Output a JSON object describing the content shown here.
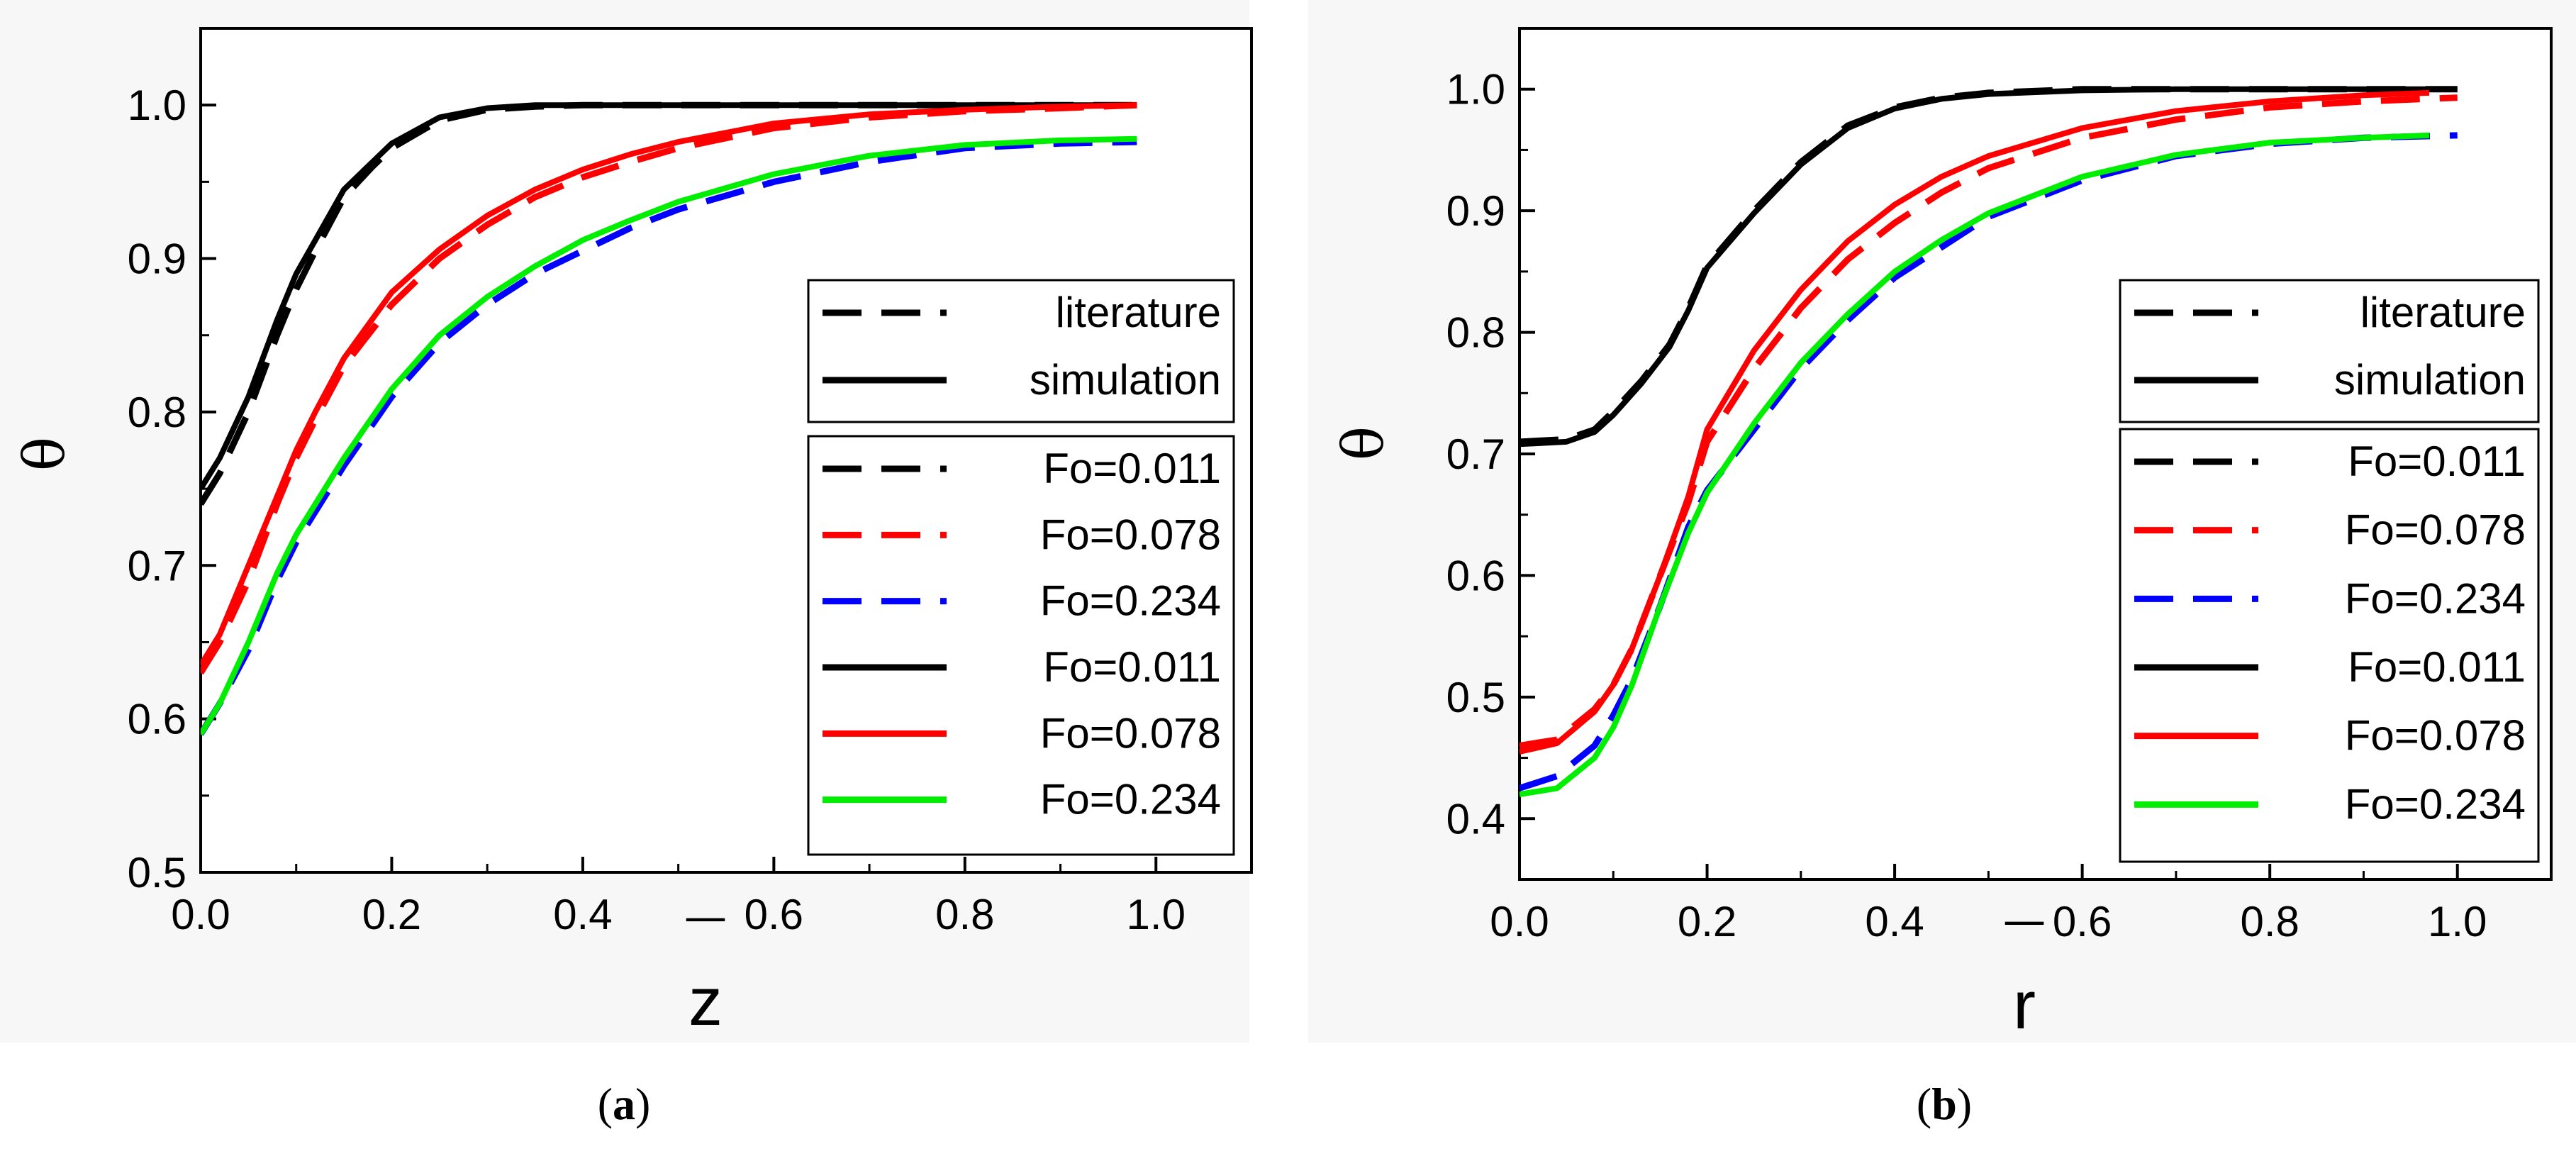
{
  "colors": {
    "black": "#000000",
    "red": "#ff0000",
    "blue": "#0000ff",
    "green": "#00ee00"
  },
  "captions": {
    "a_open": "(",
    "a_letter": "a",
    "a_close": ")",
    "b_open": "(",
    "b_letter": "b",
    "b_close": ")"
  },
  "chart_data": [
    {
      "id": "a",
      "type": "line",
      "title": "",
      "xlabel": "z",
      "xlabel_bar": "¯",
      "ylabel": "θ",
      "xlim": [
        0.0,
        1.1
      ],
      "ylim": [
        0.5,
        1.05
      ],
      "xticks": [
        "0.0",
        "0.2",
        "0.4",
        "0.6",
        "0.8",
        "1.0"
      ],
      "yticks": [
        "0.5",
        "0.6",
        "0.7",
        "0.8",
        "0.9",
        "1.0"
      ],
      "xtick_values": [
        0.0,
        0.2,
        0.4,
        0.6,
        0.8,
        1.0
      ],
      "ytick_values": [
        0.5,
        0.6,
        0.7,
        0.8,
        0.9,
        1.0
      ],
      "legend_style": [
        {
          "label": "literature",
          "dash": true,
          "color": "#000000"
        },
        {
          "label": "simulation",
          "dash": false,
          "color": "#000000"
        }
      ],
      "legend_series": [
        {
          "label": "Fo=0.011",
          "dash": true,
          "color": "#000000"
        },
        {
          "label": "Fo=0.078",
          "dash": true,
          "color": "#ff0000"
        },
        {
          "label": "Fo=0.234",
          "dash": true,
          "color": "#0000ff"
        },
        {
          "label": "Fo=0.011",
          "dash": false,
          "color": "#000000"
        },
        {
          "label": "Fo=0.078",
          "dash": false,
          "color": "#ff0000"
        },
        {
          "label": "Fo=0.234",
          "dash": false,
          "color": "#00ee00"
        }
      ],
      "series": [
        {
          "name": "literature Fo=0.011",
          "dash": true,
          "color": "#000000",
          "x": [
            0,
            0.02,
            0.05,
            0.08,
            0.1,
            0.12,
            0.15,
            0.18,
            0.2,
            0.25,
            0.3,
            0.35,
            0.4,
            0.5,
            0.6,
            0.7,
            0.8,
            0.9,
            0.98
          ],
          "y": [
            0.74,
            0.76,
            0.8,
            0.85,
            0.88,
            0.905,
            0.94,
            0.96,
            0.972,
            0.99,
            0.997,
            0.999,
            1.0,
            1.0,
            1.0,
            1.0,
            1.0,
            1.0,
            1.0
          ]
        },
        {
          "name": "literature Fo=0.078",
          "dash": true,
          "color": "#ff0000",
          "x": [
            0,
            0.02,
            0.05,
            0.08,
            0.1,
            0.12,
            0.15,
            0.2,
            0.25,
            0.3,
            0.35,
            0.4,
            0.45,
            0.5,
            0.6,
            0.7,
            0.8,
            0.9,
            0.98
          ],
          "y": [
            0.63,
            0.65,
            0.69,
            0.74,
            0.77,
            0.795,
            0.83,
            0.87,
            0.9,
            0.922,
            0.94,
            0.953,
            0.963,
            0.972,
            0.985,
            0.992,
            0.996,
            0.998,
            1.0
          ]
        },
        {
          "name": "literature Fo=0.234",
          "dash": true,
          "color": "#0000ff",
          "x": [
            0,
            0.02,
            0.05,
            0.08,
            0.1,
            0.15,
            0.2,
            0.25,
            0.3,
            0.35,
            0.4,
            0.45,
            0.5,
            0.6,
            0.7,
            0.8,
            0.9,
            0.98
          ],
          "y": [
            0.59,
            0.61,
            0.645,
            0.69,
            0.715,
            0.765,
            0.81,
            0.845,
            0.87,
            0.89,
            0.905,
            0.92,
            0.932,
            0.95,
            0.963,
            0.972,
            0.975,
            0.976
          ]
        },
        {
          "name": "simulation Fo=0.011",
          "dash": false,
          "color": "#000000",
          "x": [
            0,
            0.02,
            0.05,
            0.08,
            0.1,
            0.12,
            0.15,
            0.18,
            0.2,
            0.25,
            0.3,
            0.35,
            0.4,
            0.5,
            0.6,
            0.7,
            0.8,
            0.9,
            0.98
          ],
          "y": [
            0.75,
            0.77,
            0.81,
            0.86,
            0.89,
            0.912,
            0.945,
            0.963,
            0.975,
            0.992,
            0.998,
            1.0,
            1.0,
            1.0,
            1.0,
            1.0,
            1.0,
            1.0,
            1.0
          ]
        },
        {
          "name": "simulation Fo=0.078",
          "dash": false,
          "color": "#ff0000",
          "x": [
            0,
            0.02,
            0.05,
            0.08,
            0.1,
            0.12,
            0.15,
            0.2,
            0.25,
            0.3,
            0.35,
            0.4,
            0.45,
            0.5,
            0.6,
            0.7,
            0.8,
            0.9,
            0.98
          ],
          "y": [
            0.635,
            0.655,
            0.7,
            0.745,
            0.775,
            0.8,
            0.835,
            0.878,
            0.906,
            0.928,
            0.945,
            0.958,
            0.968,
            0.976,
            0.988,
            0.994,
            0.997,
            0.999,
            1.0
          ]
        },
        {
          "name": "simulation Fo=0.234",
          "dash": false,
          "color": "#00ee00",
          "x": [
            0,
            0.02,
            0.05,
            0.08,
            0.1,
            0.15,
            0.2,
            0.25,
            0.3,
            0.35,
            0.4,
            0.45,
            0.5,
            0.6,
            0.7,
            0.8,
            0.9,
            0.98
          ],
          "y": [
            0.59,
            0.61,
            0.65,
            0.695,
            0.72,
            0.77,
            0.815,
            0.85,
            0.875,
            0.895,
            0.912,
            0.925,
            0.937,
            0.955,
            0.967,
            0.974,
            0.977,
            0.978
          ]
        }
      ]
    },
    {
      "id": "b",
      "type": "line",
      "title": "",
      "xlabel": "r",
      "xlabel_bar": "¯",
      "ylabel": "θ",
      "xlim": [
        0.0,
        1.1
      ],
      "ylim": [
        0.35,
        1.05
      ],
      "xticks": [
        "0.0",
        "0.2",
        "0.4",
        "0.6",
        "0.8",
        "1.0"
      ],
      "yticks": [
        "0.4",
        "0.5",
        "0.6",
        "0.7",
        "0.8",
        "0.9",
        "1.0"
      ],
      "xtick_values": [
        0.0,
        0.2,
        0.4,
        0.6,
        0.8,
        1.0
      ],
      "ytick_values": [
        0.4,
        0.5,
        0.6,
        0.7,
        0.8,
        0.9,
        1.0
      ],
      "legend_style": [
        {
          "label": "literature",
          "dash": true,
          "color": "#000000"
        },
        {
          "label": "simulation",
          "dash": false,
          "color": "#000000"
        }
      ],
      "legend_series": [
        {
          "label": "Fo=0.011",
          "dash": true,
          "color": "#000000"
        },
        {
          "label": "Fo=0.078",
          "dash": true,
          "color": "#ff0000"
        },
        {
          "label": "Fo=0.234",
          "dash": true,
          "color": "#0000ff"
        },
        {
          "label": "Fo=0.011",
          "dash": false,
          "color": "#000000"
        },
        {
          "label": "Fo=0.078",
          "dash": false,
          "color": "#ff0000"
        },
        {
          "label": "Fo=0.234",
          "dash": false,
          "color": "#00ee00"
        }
      ],
      "series": [
        {
          "name": "literature Fo=0.011",
          "dash": true,
          "color": "#000000",
          "x": [
            0,
            0.05,
            0.08,
            0.1,
            0.13,
            0.16,
            0.18,
            0.2,
            0.25,
            0.3,
            0.35,
            0.4,
            0.45,
            0.5,
            0.6,
            0.7,
            0.8,
            0.9,
            1.0
          ],
          "y": [
            0.71,
            0.712,
            0.72,
            0.735,
            0.76,
            0.79,
            0.82,
            0.855,
            0.9,
            0.94,
            0.97,
            0.985,
            0.993,
            0.997,
            1.0,
            1.0,
            1.0,
            1.0,
            1.0
          ]
        },
        {
          "name": "literature Fo=0.078",
          "dash": true,
          "color": "#ff0000",
          "x": [
            0,
            0.04,
            0.08,
            0.1,
            0.12,
            0.15,
            0.18,
            0.2,
            0.25,
            0.3,
            0.35,
            0.4,
            0.45,
            0.5,
            0.6,
            0.7,
            0.8,
            0.9,
            1.0
          ],
          "y": [
            0.46,
            0.465,
            0.49,
            0.51,
            0.54,
            0.6,
            0.66,
            0.71,
            0.77,
            0.82,
            0.86,
            0.89,
            0.915,
            0.935,
            0.96,
            0.975,
            0.985,
            0.99,
            0.993
          ]
        },
        {
          "name": "literature Fo=0.234",
          "dash": true,
          "color": "#0000ff",
          "x": [
            0,
            0.04,
            0.08,
            0.1,
            0.12,
            0.15,
            0.18,
            0.2,
            0.25,
            0.3,
            0.35,
            0.4,
            0.45,
            0.5,
            0.6,
            0.7,
            0.8,
            0.9,
            1.0
          ],
          "y": [
            0.425,
            0.435,
            0.46,
            0.485,
            0.515,
            0.575,
            0.64,
            0.67,
            0.72,
            0.77,
            0.81,
            0.845,
            0.87,
            0.895,
            0.925,
            0.945,
            0.955,
            0.96,
            0.962
          ]
        },
        {
          "name": "simulation Fo=0.011",
          "dash": false,
          "color": "#000000",
          "x": [
            0,
            0.05,
            0.08,
            0.1,
            0.13,
            0.16,
            0.18,
            0.2,
            0.25,
            0.3,
            0.35,
            0.4,
            0.45,
            0.5,
            0.6,
            0.7,
            0.8,
            0.9,
            1.0
          ],
          "y": [
            0.708,
            0.71,
            0.718,
            0.732,
            0.758,
            0.788,
            0.818,
            0.853,
            0.898,
            0.938,
            0.968,
            0.984,
            0.992,
            0.996,
            0.999,
            1.0,
            1.0,
            1.0,
            1.0
          ]
        },
        {
          "name": "simulation Fo=0.078",
          "dash": false,
          "color": "#ff0000",
          "x": [
            0,
            0.04,
            0.08,
            0.1,
            0.12,
            0.15,
            0.18,
            0.2,
            0.25,
            0.3,
            0.35,
            0.4,
            0.45,
            0.5,
            0.6,
            0.7,
            0.8,
            0.9,
            0.97
          ],
          "y": [
            0.455,
            0.462,
            0.488,
            0.51,
            0.54,
            0.6,
            0.665,
            0.72,
            0.785,
            0.835,
            0.875,
            0.905,
            0.928,
            0.945,
            0.968,
            0.982,
            0.99,
            0.995,
            0.997
          ]
        },
        {
          "name": "simulation Fo=0.234",
          "dash": false,
          "color": "#00ee00",
          "x": [
            0,
            0.04,
            0.08,
            0.1,
            0.12,
            0.15,
            0.18,
            0.2,
            0.25,
            0.3,
            0.35,
            0.4,
            0.45,
            0.5,
            0.6,
            0.7,
            0.8,
            0.9,
            0.97
          ],
          "y": [
            0.42,
            0.425,
            0.45,
            0.475,
            0.51,
            0.575,
            0.635,
            0.668,
            0.725,
            0.775,
            0.815,
            0.85,
            0.876,
            0.898,
            0.928,
            0.946,
            0.956,
            0.96,
            0.962
          ]
        }
      ]
    }
  ]
}
